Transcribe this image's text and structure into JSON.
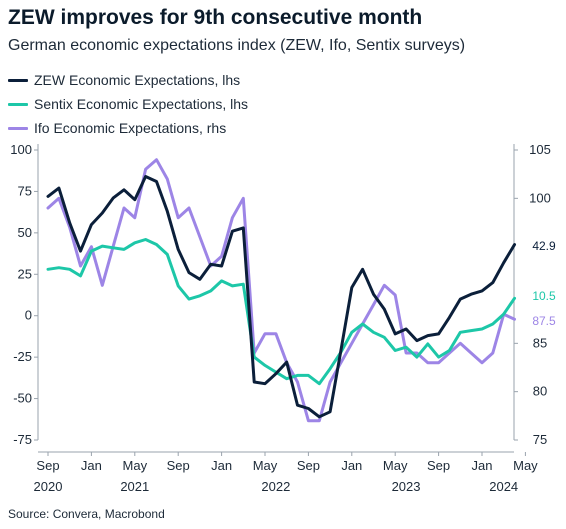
{
  "title": "ZEW improves for 9th consecutive month",
  "subtitle": "German economic expectations index (ZEW, Ifo, Sentix surveys)",
  "source": "Source: Convera, Macrobond",
  "chart_data": {
    "type": "line",
    "x_start": "2020-09",
    "x_ticks": [
      {
        "date": "2020-09",
        "label": "Sep"
      },
      {
        "date": "2021-01",
        "label": "Jan"
      },
      {
        "date": "2021-05",
        "label": "May"
      },
      {
        "date": "2021-09",
        "label": "Sep"
      },
      {
        "date": "2022-01",
        "label": "Jan"
      },
      {
        "date": "2022-05",
        "label": "May"
      },
      {
        "date": "2022-09",
        "label": "Sep"
      },
      {
        "date": "2023-01",
        "label": "Jan"
      },
      {
        "date": "2023-05",
        "label": "May"
      },
      {
        "date": "2023-09",
        "label": "Sep"
      },
      {
        "date": "2024-01",
        "label": "Jan"
      },
      {
        "date": "2024-05",
        "label": "May"
      }
    ],
    "year_labels": [
      {
        "date": "2020-09",
        "label": "2020"
      },
      {
        "date": "2021-05",
        "label": "2021"
      },
      {
        "date": "2022-06",
        "label": "2022"
      },
      {
        "date": "2023-06",
        "label": "2023"
      },
      {
        "date": "2024-03",
        "label": "2024"
      }
    ],
    "y_left": {
      "ticks": [
        100,
        75,
        50,
        25,
        0,
        -25,
        -50,
        -75
      ],
      "ylim": [
        -75,
        100
      ]
    },
    "y_right": {
      "ticks": [
        105,
        100,
        85,
        80,
        75
      ],
      "ylim": [
        75,
        105
      ]
    },
    "series": [
      {
        "name": "ZEW Economic Expectations, lhs",
        "color": "#0b1f3a",
        "axis": "left",
        "end_label": "42.9",
        "values": [
          [
            "2020-09",
            72
          ],
          [
            "2020-10",
            77
          ],
          [
            "2020-11",
            56
          ],
          [
            "2020-12",
            39
          ],
          [
            "2021-01",
            55
          ],
          [
            "2021-02",
            62
          ],
          [
            "2021-03",
            71
          ],
          [
            "2021-04",
            76
          ],
          [
            "2021-05",
            70
          ],
          [
            "2021-06",
            84
          ],
          [
            "2021-07",
            81
          ],
          [
            "2021-08",
            63
          ],
          [
            "2021-09",
            40
          ],
          [
            "2021-10",
            26
          ],
          [
            "2021-11",
            22
          ],
          [
            "2021-12",
            31
          ],
          [
            "2022-01",
            30
          ],
          [
            "2022-02",
            51
          ],
          [
            "2022-03",
            53
          ],
          [
            "2022-04",
            -40
          ],
          [
            "2022-05",
            -41
          ],
          [
            "2022-06",
            -35
          ],
          [
            "2022-07",
            -28
          ],
          [
            "2022-08",
            -54
          ],
          [
            "2022-09",
            -56
          ],
          [
            "2022-10",
            -61
          ],
          [
            "2022-11",
            -58
          ],
          [
            "2022-12",
            -21
          ],
          [
            "2023-01",
            17
          ],
          [
            "2023-02",
            28
          ],
          [
            "2023-03",
            13
          ],
          [
            "2023-04",
            4
          ],
          [
            "2023-05",
            -11
          ],
          [
            "2023-06",
            -8
          ],
          [
            "2023-07",
            -15
          ],
          [
            "2023-08",
            -12
          ],
          [
            "2023-09",
            -11
          ],
          [
            "2023-10",
            -1
          ],
          [
            "2023-11",
            10
          ],
          [
            "2023-12",
            13
          ],
          [
            "2024-01",
            15
          ],
          [
            "2024-02",
            20
          ],
          [
            "2024-03",
            32
          ],
          [
            "2024-04",
            42.9
          ]
        ]
      },
      {
        "name": "Sentix Economic Expectations, lhs",
        "color": "#1dc7a8",
        "axis": "left",
        "end_label": "10.5",
        "values": [
          [
            "2020-09",
            28
          ],
          [
            "2020-10",
            29
          ],
          [
            "2020-11",
            28
          ],
          [
            "2020-12",
            24
          ],
          [
            "2021-01",
            39
          ],
          [
            "2021-02",
            42
          ],
          [
            "2021-03",
            41
          ],
          [
            "2021-04",
            40
          ],
          [
            "2021-05",
            44
          ],
          [
            "2021-06",
            46
          ],
          [
            "2021-07",
            43
          ],
          [
            "2021-08",
            37
          ],
          [
            "2021-09",
            18
          ],
          [
            "2021-10",
            10
          ],
          [
            "2021-11",
            12
          ],
          [
            "2021-12",
            15
          ],
          [
            "2022-01",
            21
          ],
          [
            "2022-02",
            18
          ],
          [
            "2022-03",
            19
          ],
          [
            "2022-04",
            -25
          ],
          [
            "2022-05",
            -30
          ],
          [
            "2022-06",
            -34
          ],
          [
            "2022-07",
            -38
          ],
          [
            "2022-08",
            -36
          ],
          [
            "2022-09",
            -36
          ],
          [
            "2022-10",
            -41
          ],
          [
            "2022-11",
            -32
          ],
          [
            "2022-12",
            -22
          ],
          [
            "2023-01",
            -10
          ],
          [
            "2023-02",
            -5
          ],
          [
            "2023-03",
            -10
          ],
          [
            "2023-04",
            -13
          ],
          [
            "2023-05",
            -21
          ],
          [
            "2023-06",
            -19
          ],
          [
            "2023-07",
            -25
          ],
          [
            "2023-08",
            -17
          ],
          [
            "2023-09",
            -25
          ],
          [
            "2023-10",
            -21
          ],
          [
            "2023-11",
            -10
          ],
          [
            "2023-12",
            -9
          ],
          [
            "2024-01",
            -8
          ],
          [
            "2024-02",
            -5
          ],
          [
            "2024-03",
            1
          ],
          [
            "2024-04",
            10.5
          ]
        ]
      },
      {
        "name": "Ifo Economic Expectations, rhs",
        "color": "#9d85e6",
        "axis": "right",
        "end_label": "87.5",
        "values": [
          [
            "2020-09",
            99
          ],
          [
            "2020-10",
            100
          ],
          [
            "2020-11",
            97
          ],
          [
            "2020-12",
            93
          ],
          [
            "2021-01",
            95
          ],
          [
            "2021-02",
            91
          ],
          [
            "2021-03",
            95
          ],
          [
            "2021-04",
            99
          ],
          [
            "2021-05",
            98
          ],
          [
            "2021-06",
            103
          ],
          [
            "2021-07",
            104
          ],
          [
            "2021-08",
            102
          ],
          [
            "2021-09",
            98
          ],
          [
            "2021-10",
            99
          ],
          [
            "2021-11",
            96
          ],
          [
            "2021-12",
            93
          ],
          [
            "2022-01",
            94
          ],
          [
            "2022-02",
            98
          ],
          [
            "2022-03",
            100
          ],
          [
            "2022-04",
            84
          ],
          [
            "2022-05",
            86
          ],
          [
            "2022-06",
            86
          ],
          [
            "2022-07",
            83
          ],
          [
            "2022-08",
            81
          ],
          [
            "2022-09",
            77
          ],
          [
            "2022-10",
            77
          ],
          [
            "2022-11",
            81
          ],
          [
            "2022-12",
            83
          ],
          [
            "2023-01",
            85
          ],
          [
            "2023-02",
            87
          ],
          [
            "2023-03",
            89
          ],
          [
            "2023-04",
            91
          ],
          [
            "2023-05",
            90
          ],
          [
            "2023-06",
            84
          ],
          [
            "2023-07",
            84
          ],
          [
            "2023-08",
            83
          ],
          [
            "2023-09",
            83
          ],
          [
            "2023-10",
            84
          ],
          [
            "2023-11",
            85
          ],
          [
            "2023-12",
            84
          ],
          [
            "2024-01",
            83
          ],
          [
            "2024-02",
            84
          ],
          [
            "2024-03",
            88
          ],
          [
            "2024-04",
            87.5
          ]
        ]
      }
    ]
  }
}
